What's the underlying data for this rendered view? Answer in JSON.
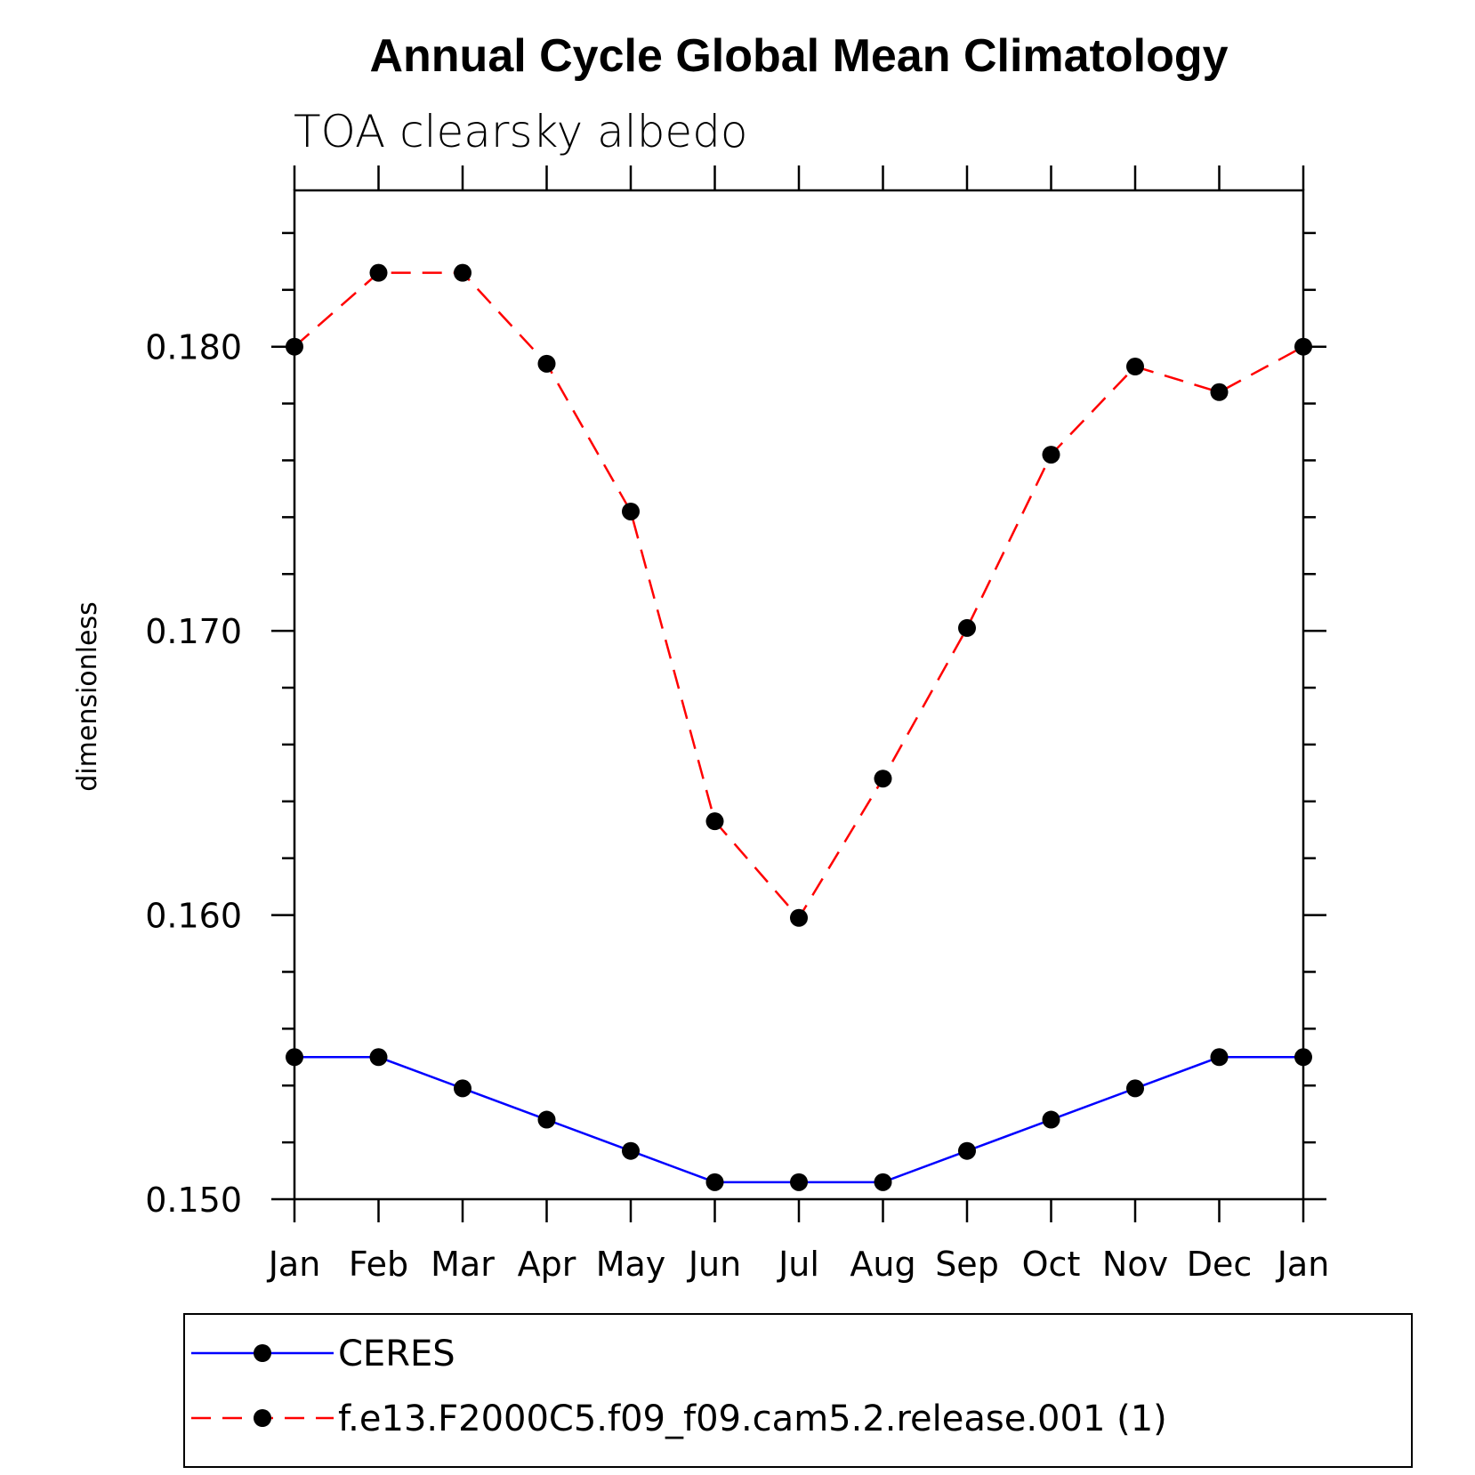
{
  "chart_data": {
    "type": "line",
    "title": "Annual Cycle Global Mean Climatology",
    "subtitle": "TOA clearsky albedo",
    "ylabel": "dimensionless",
    "xlabel": "",
    "categories": [
      "Jan",
      "Feb",
      "Mar",
      "Apr",
      "May",
      "Jun",
      "Jul",
      "Aug",
      "Sep",
      "Oct",
      "Nov",
      "Dec",
      "Jan"
    ],
    "ylim": [
      0.15,
      0.1855
    ],
    "yticks": [
      0.15,
      0.16,
      0.17,
      0.18
    ],
    "ytick_labels": [
      "0.150",
      "0.160",
      "0.170",
      "0.180"
    ],
    "grid": false,
    "legend_position": "bottom",
    "series": [
      {
        "name": "CERES",
        "color": "#0000ff",
        "style": "solid",
        "marker": "circle",
        "values": [
          0.155,
          0.155,
          0.1539,
          0.1528,
          0.1517,
          0.1506,
          0.1506,
          0.1506,
          0.1517,
          0.1528,
          0.1539,
          0.155,
          0.155
        ]
      },
      {
        "name": "f.e13.F2000C5.f09_f09.cam5.2.release.001 (1)",
        "color": "#ff0000",
        "style": "dashed",
        "marker": "circle",
        "values": [
          0.18,
          0.1826,
          0.1826,
          0.1794,
          0.1742,
          0.1633,
          0.1599,
          0.1648,
          0.1701,
          0.1762,
          0.1793,
          0.1784,
          0.18
        ]
      }
    ]
  }
}
